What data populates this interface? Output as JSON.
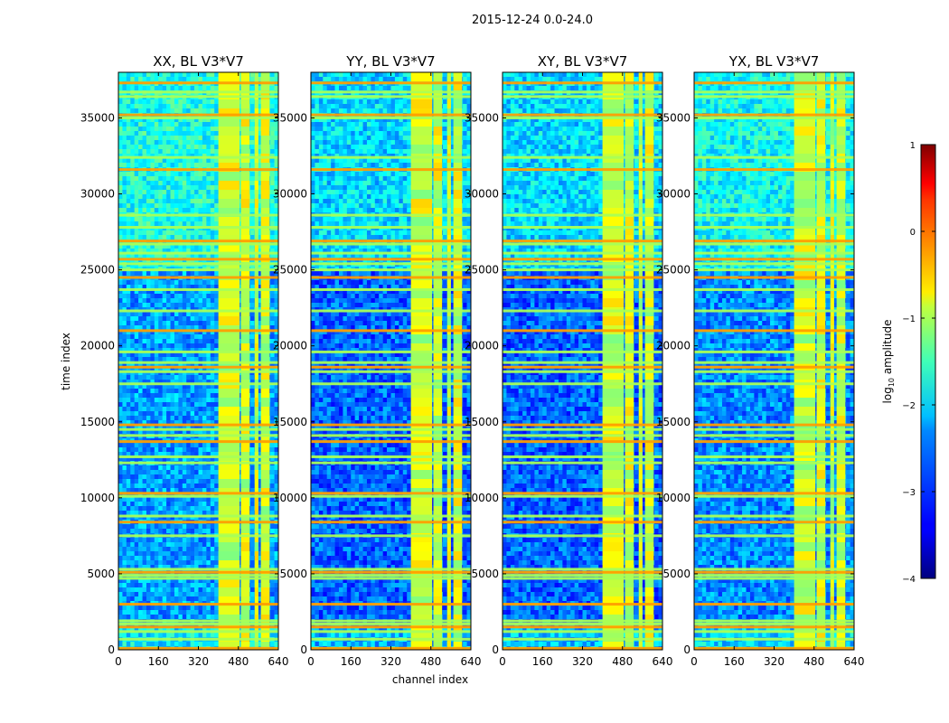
{
  "suptitle": "2015-12-24 0.0-24.0",
  "chart_data": {
    "type": "heatmap",
    "suptitle": "2015-12-24 0.0-24.0",
    "xlabel": "channel index",
    "ylabel": "time index",
    "xlim": [
      0,
      640
    ],
    "ylim": [
      0,
      38000
    ],
    "xticks": [
      "0",
      "160",
      "320",
      "480",
      "640"
    ],
    "yticks": [
      "0",
      "5000",
      "10000",
      "15000",
      "20000",
      "25000",
      "30000",
      "35000"
    ],
    "colormap": "jet",
    "colorbar": {
      "label_prefix": "log",
      "label_sub": "10",
      "label_suffix": " amplitude",
      "range": [
        -4,
        1
      ],
      "ticks": [
        "1",
        "0",
        "−1",
        "−2",
        "−3",
        "−4"
      ]
    },
    "panels": [
      {
        "title": "XX, BL V3*V7",
        "base_level": -2.6
      },
      {
        "title": "YY, BL V3*V7",
        "base_level": -2.9
      },
      {
        "title": "XY, BL V3*V7",
        "base_level": -2.9
      },
      {
        "title": "YX, BL V3*V7",
        "base_level": -2.7
      }
    ],
    "strong_channel_bands": [
      [
        400,
        485
      ],
      [
        490,
        525
      ],
      [
        545,
        560
      ],
      [
        570,
        605
      ]
    ],
    "rfi_time_rows": [
      100,
      700,
      1200,
      1500,
      1700,
      1900,
      3000,
      4700,
      4900,
      5100,
      5300,
      7500,
      8400,
      8800,
      10100,
      10300,
      12300,
      12700,
      13700,
      14100,
      14500,
      14800,
      17500,
      18300,
      18600,
      18900,
      19600,
      21000,
      22300,
      23700,
      24500,
      25000,
      25400,
      25700,
      26100,
      26700,
      26900,
      27800,
      28600,
      31600,
      32400,
      35000,
      35200,
      36400,
      36700,
      37300
    ]
  }
}
